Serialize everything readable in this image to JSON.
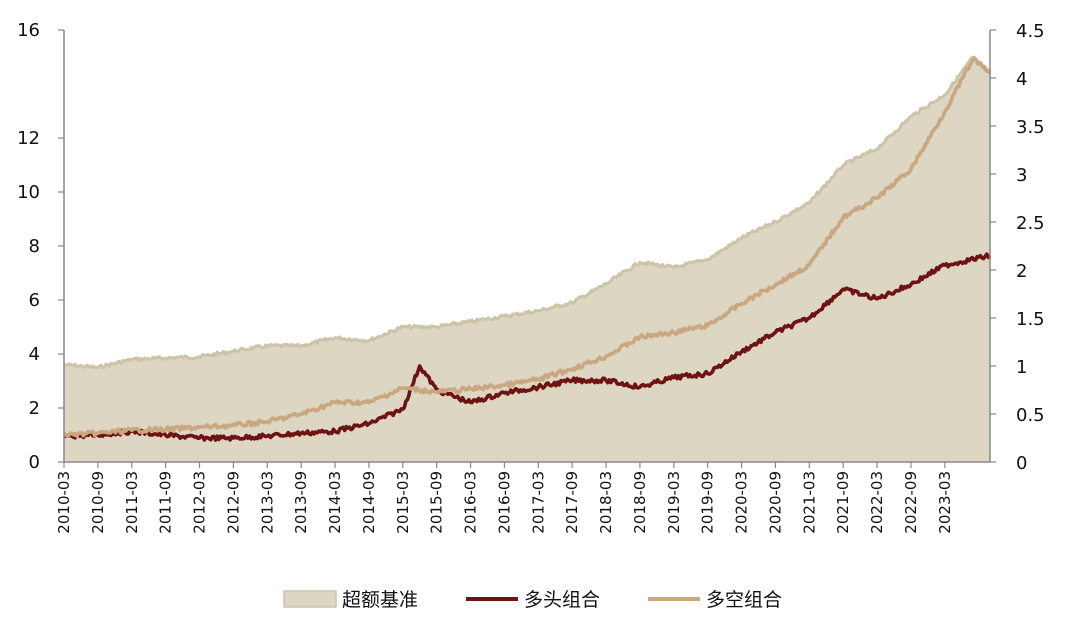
{
  "chart_data": {
    "type": "line",
    "x_labels": [
      "2010-03",
      "2010-09",
      "2011-03",
      "2011-09",
      "2012-03",
      "2012-09",
      "2013-03",
      "2013-09",
      "2014-03",
      "2014-09",
      "2015-03",
      "2015-09",
      "2016-03",
      "2016-09",
      "2017-03",
      "2017-09",
      "2018-03",
      "2018-09",
      "2019-03",
      "2019-09",
      "2020-03",
      "2020-09",
      "2021-03",
      "2021-09",
      "2022-03",
      "2022-09",
      "2023-03"
    ],
    "x_range": [
      "2010-03",
      "2023-11"
    ],
    "y_left": {
      "ticks": [
        "0",
        "2",
        "4",
        "6",
        "8",
        "10",
        "12",
        "16"
      ],
      "ylim": [
        0,
        16
      ],
      "tick_values": [
        0,
        2,
        4,
        6,
        8,
        10,
        12,
        16
      ]
    },
    "y_right": {
      "ticks": [
        "0",
        "0.5",
        "1",
        "1.5",
        "2",
        "2.5",
        "3",
        "3.5",
        "4",
        "4.5"
      ],
      "ylim": [
        0,
        4.5
      ],
      "tick_values": [
        0,
        0.5,
        1,
        1.5,
        2,
        2.5,
        3,
        3.5,
        4,
        4.5
      ]
    },
    "series": [
      {
        "name": "超额基准",
        "style": "area",
        "axis": "left",
        "color": "#DDD6C3",
        "edge_color": "#CDC3A8",
        "points": [
          [
            "2010-03",
            3.6
          ],
          [
            "2010-09",
            3.5
          ],
          [
            "2011-03",
            3.8
          ],
          [
            "2011-09",
            3.85
          ],
          [
            "2012-03",
            3.9
          ],
          [
            "2012-09",
            4.1
          ],
          [
            "2013-03",
            4.3
          ],
          [
            "2013-09",
            4.3
          ],
          [
            "2014-03",
            4.6
          ],
          [
            "2014-09",
            4.5
          ],
          [
            "2015-03",
            5.0
          ],
          [
            "2015-09",
            5.0
          ],
          [
            "2016-03",
            5.2
          ],
          [
            "2016-09",
            5.4
          ],
          [
            "2017-03",
            5.6
          ],
          [
            "2017-09",
            5.9
          ],
          [
            "2018-03",
            6.6
          ],
          [
            "2018-09",
            7.4
          ],
          [
            "2019-03",
            7.2
          ],
          [
            "2019-09",
            7.5
          ],
          [
            "2020-03",
            8.3
          ],
          [
            "2020-09",
            8.9
          ],
          [
            "2021-03",
            9.6
          ],
          [
            "2021-09",
            11.0
          ],
          [
            "2022-03",
            11.6
          ],
          [
            "2022-09",
            12.8
          ],
          [
            "2023-03",
            13.6
          ],
          [
            "2023-08",
            15.0
          ],
          [
            "2023-11",
            14.4
          ]
        ]
      },
      {
        "name": "多头组合",
        "style": "line",
        "axis": "right",
        "color": "#6E1212",
        "points": [
          [
            "2010-03",
            0.27
          ],
          [
            "2010-09",
            0.28
          ],
          [
            "2011-03",
            0.32
          ],
          [
            "2011-09",
            0.28
          ],
          [
            "2012-03",
            0.25
          ],
          [
            "2012-09",
            0.25
          ],
          [
            "2013-03",
            0.27
          ],
          [
            "2013-09",
            0.3
          ],
          [
            "2014-03",
            0.32
          ],
          [
            "2014-09",
            0.4
          ],
          [
            "2015-03",
            0.55
          ],
          [
            "2015-06",
            1.0
          ],
          [
            "2015-09",
            0.75
          ],
          [
            "2016-03",
            0.62
          ],
          [
            "2016-09",
            0.72
          ],
          [
            "2017-03",
            0.78
          ],
          [
            "2017-09",
            0.85
          ],
          [
            "2018-03",
            0.85
          ],
          [
            "2018-09",
            0.78
          ],
          [
            "2019-03",
            0.88
          ],
          [
            "2019-09",
            0.92
          ],
          [
            "2020-03",
            1.15
          ],
          [
            "2020-09",
            1.35
          ],
          [
            "2021-03",
            1.5
          ],
          [
            "2021-09",
            1.8
          ],
          [
            "2022-03",
            1.7
          ],
          [
            "2022-09",
            1.85
          ],
          [
            "2023-03",
            2.05
          ],
          [
            "2023-11",
            2.15
          ]
        ]
      },
      {
        "name": "多空组合",
        "style": "line",
        "axis": "right",
        "color": "#C9A780",
        "points": [
          [
            "2010-03",
            0.28
          ],
          [
            "2010-09",
            0.3
          ],
          [
            "2011-03",
            0.33
          ],
          [
            "2011-09",
            0.34
          ],
          [
            "2012-03",
            0.36
          ],
          [
            "2012-09",
            0.38
          ],
          [
            "2013-03",
            0.42
          ],
          [
            "2013-09",
            0.5
          ],
          [
            "2014-03",
            0.62
          ],
          [
            "2014-09",
            0.62
          ],
          [
            "2015-03",
            0.77
          ],
          [
            "2015-09",
            0.73
          ],
          [
            "2016-03",
            0.76
          ],
          [
            "2016-09",
            0.8
          ],
          [
            "2017-03",
            0.86
          ],
          [
            "2017-09",
            0.97
          ],
          [
            "2018-03",
            1.1
          ],
          [
            "2018-09",
            1.3
          ],
          [
            "2019-03",
            1.35
          ],
          [
            "2019-09",
            1.42
          ],
          [
            "2020-03",
            1.65
          ],
          [
            "2020-09",
            1.85
          ],
          [
            "2021-03",
            2.05
          ],
          [
            "2021-09",
            2.55
          ],
          [
            "2022-03",
            2.75
          ],
          [
            "2022-09",
            3.05
          ],
          [
            "2023-03",
            3.65
          ],
          [
            "2023-08",
            4.2
          ],
          [
            "2023-11",
            4.05
          ]
        ]
      }
    ],
    "legend": {
      "position": "bottom",
      "entries": [
        "超额基准",
        "多头组合",
        "多空组合"
      ]
    },
    "grid": false
  }
}
